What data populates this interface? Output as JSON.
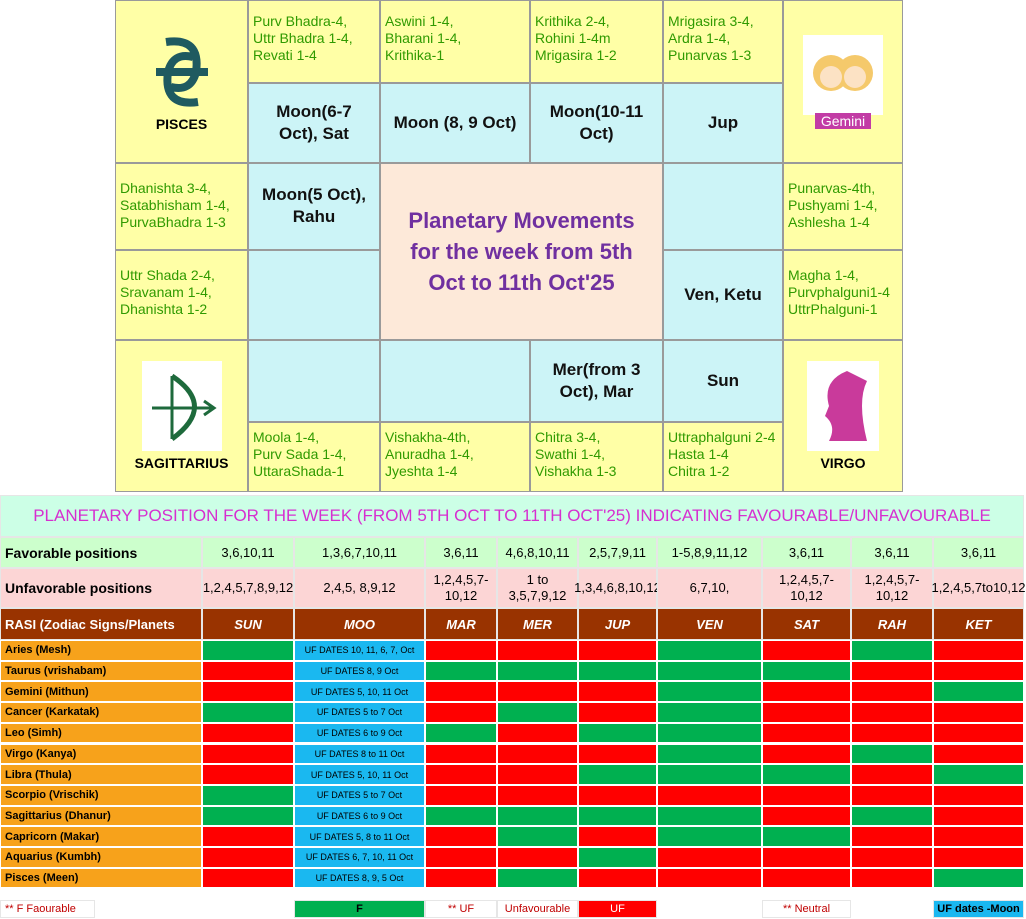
{
  "grid": {
    "signs": [
      "PISCES",
      "Gemini",
      "SAGITTARIUS",
      "VIRGO"
    ],
    "title": "Planetary Movements\nfor the week from 5th\nOct to 11th Oct'25",
    "nakshatras": [
      "Purv Bhadra-4,\nUttr Bhadra 1-4,\nRevati 1-4",
      "Aswini 1-4,\nBharani 1-4,\nKrithika-1",
      "Krithika 2-4,\nRohini 1-4m\nMrigasira 1-2",
      "Mrigasira 3-4,\nArdra 1-4,\nPunarvas 1-3",
      "Punarvas-4th,\nPushyami 1-4,\nAshlesha 1-4",
      "Magha 1-4,\nPurvphalguni1-4\nUttrPhalguni-1",
      "Uttraphalguni 2-4\nHasta 1-4\nChitra 1-2",
      "Chitra 3-4,\nSwathi 1-4,\nVishakha 1-3",
      "Vishakha-4th,\nAnuradha 1-4,\nJyeshta 1-4",
      "Moola 1-4,\nPurv Sada 1-4,\nUttaraShada-1",
      "Uttr Shada 2-4,\nSravanam 1-4,\nDhanishta 1-2",
      "Dhanishta 3-4,\nSatabhisham 1-4,\nPurvaBhadra 1-3"
    ],
    "positions": [
      "Moon(6-7 Oct), Sat",
      "Moon (8, 9 Oct)",
      "Moon(10-11 Oct)",
      "Jup",
      "Moon(5 Oct), Rahu",
      "Ven, Ketu",
      "Mer(from 3 Oct), Mar",
      "Sun"
    ]
  },
  "table": {
    "title": "PLANETARY POSITION FOR THE WEEK (FROM 5TH OCT TO 11TH OCT'25) INDICATING FAVOURABLE/UNFAVOURABLE",
    "favorable": {
      "label": "Favorable positions",
      "values": [
        "3,6,10,11",
        "1,3,6,7,10,11",
        "3,6,11",
        "4,6,8,10,11",
        "2,5,7,9,11",
        "1-5,8,9,11,12",
        "3,6,11",
        "3,6,11",
        "3,6,11"
      ]
    },
    "unfavorable": {
      "label": "Unfavorable positions",
      "values": [
        "1,2,4,5,7,8,9,12",
        "2,4,5, 8,9,12",
        "1,2,4,5,7-10,12",
        "1 to 3,5,7,9,12",
        "1,3,4,6,8,10,12",
        "6,7,10,",
        "1,2,4,5,7-10,12",
        "1,2,4,5,7-10,12",
        "1,2,4,5,7to10,12"
      ]
    },
    "header": {
      "label": "RASI (Zodiac Signs/Planets",
      "planets": [
        "SUN",
        "MOO",
        "MAR",
        "MER",
        "JUP",
        "VEN",
        "SAT",
        "RAH",
        "KET"
      ]
    },
    "favourable_color": "#00b050",
    "unfavourable_color": "#ff0000",
    "moon_color": "#1ab8f0",
    "rows": [
      {
        "rasi": "Aries (Mesh)",
        "moon": "UF DATES 10, 11, 6, 7, Oct",
        "status": [
          "F",
          "UF",
          "UF",
          "UF",
          "F",
          "UF",
          "F",
          "UF"
        ]
      },
      {
        "rasi": "Taurus (vrishabam)",
        "moon": "UF DATES 8, 9 Oct",
        "status": [
          "UF",
          "F",
          "F",
          "F",
          "F",
          "F",
          "UF",
          "UF"
        ]
      },
      {
        "rasi": "Gemini (Mithun)",
        "moon": "UF DATES 5, 10, 11 Oct",
        "status": [
          "UF",
          "UF",
          "UF",
          "UF",
          "F",
          "UF",
          "UF",
          "F"
        ]
      },
      {
        "rasi": "Cancer (Karkatak)",
        "moon": "UF DATES 5 to 7 Oct",
        "status": [
          "F",
          "UF",
          "F",
          "UF",
          "F",
          "UF",
          "UF",
          "UF"
        ]
      },
      {
        "rasi": "Leo (Simh)",
        "moon": "UF DATES 6 to 9 Oct",
        "status": [
          "UF",
          "F",
          "UF",
          "F",
          "F",
          "UF",
          "UF",
          "UF"
        ]
      },
      {
        "rasi": "Virgo (Kanya)",
        "moon": "UF DATES 8 to 11 Oct",
        "status": [
          "UF",
          "UF",
          "UF",
          "UF",
          "F",
          "UF",
          "F",
          "UF"
        ]
      },
      {
        "rasi": "Libra (Thula)",
        "moon": "UF DATES 5, 10, 11 Oct",
        "status": [
          "UF",
          "UF",
          "UF",
          "F",
          "F",
          "F",
          "UF",
          "F"
        ]
      },
      {
        "rasi": "Scorpio (Vrischik)",
        "moon": "UF DATES 5 to 7 Oct",
        "status": [
          "F",
          "UF",
          "UF",
          "UF",
          "UF",
          "UF",
          "UF",
          "UF"
        ]
      },
      {
        "rasi": "Sagittarius (Dhanur)",
        "moon": "UF DATES 6 to 9 Oct",
        "status": [
          "F",
          "F",
          "F",
          "F",
          "F",
          "UF",
          "F",
          "UF"
        ]
      },
      {
        "rasi": "Capricorn (Makar)",
        "moon": "UF DATES 5, 8 to 11 Oct",
        "status": [
          "UF",
          "UF",
          "F",
          "UF",
          "F",
          "F",
          "UF",
          "UF"
        ]
      },
      {
        "rasi": "Aquarius (Kumbh)",
        "moon": "UF DATES 6, 7, 10, 11 Oct",
        "status": [
          "UF",
          "UF",
          "UF",
          "F",
          "UF",
          "UF",
          "UF",
          "UF"
        ]
      },
      {
        "rasi": "Pisces (Meen)",
        "moon": "UF DATES 8, 9, 5 Oct",
        "status": [
          "UF",
          "UF",
          "F",
          "UF",
          "UF",
          "UF",
          "UF",
          "F"
        ]
      }
    ],
    "legend": [
      "**  F   Faourable",
      "F",
      "** UF",
      "Unfavourable",
      "UF",
      "** Neutral",
      "UF dates -Moon"
    ]
  }
}
